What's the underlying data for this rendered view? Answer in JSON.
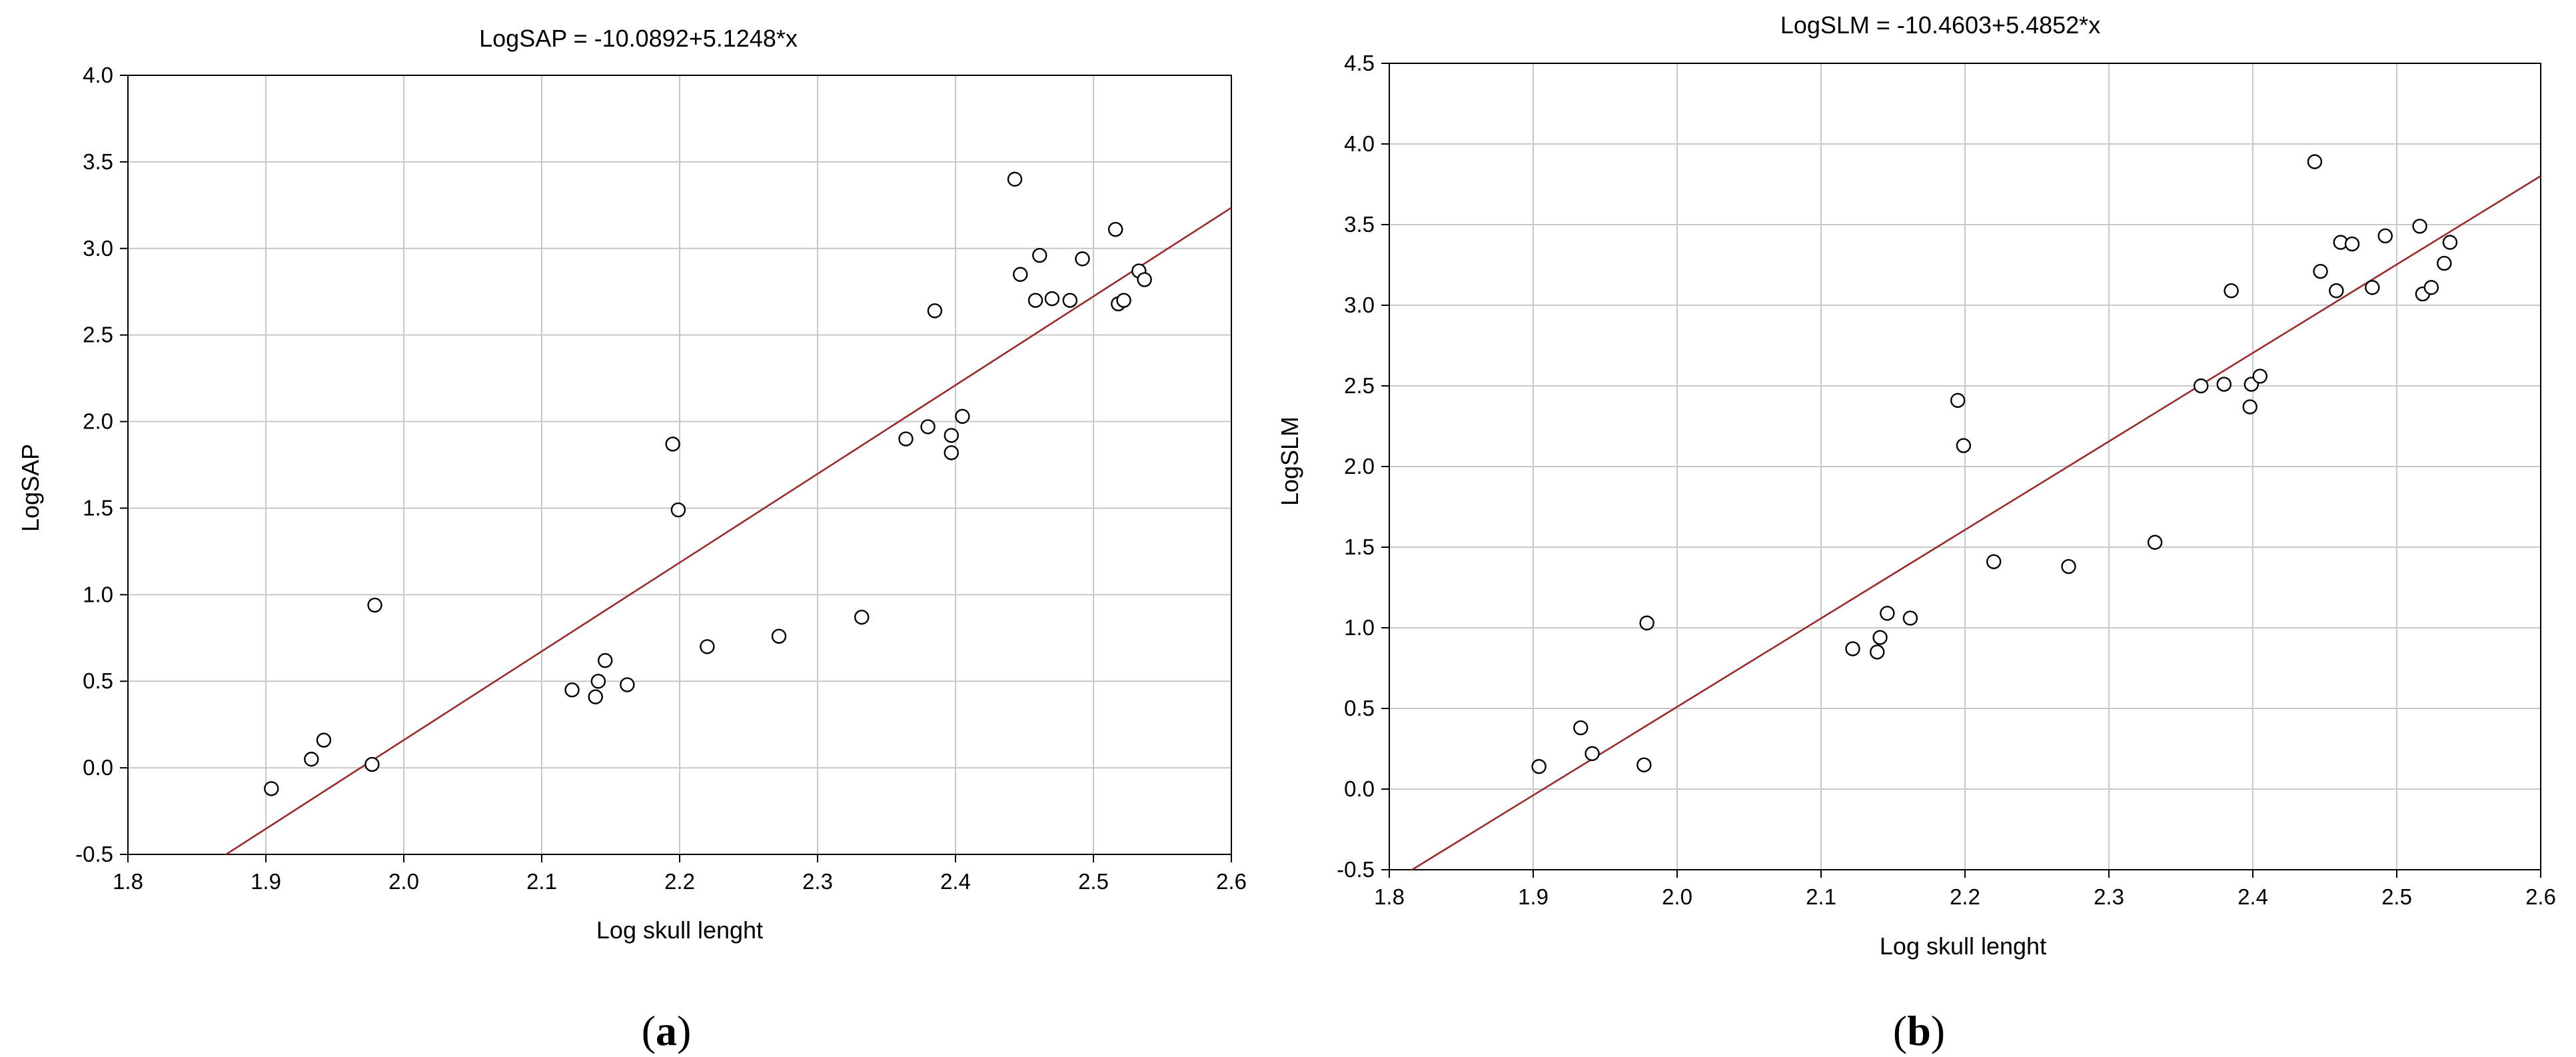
{
  "chart_data": [
    {
      "type": "scatter",
      "panel": "a",
      "title": "LogSAP = -10.0892+5.1248*x",
      "xlabel": "Log skull lenght",
      "ylabel": "LogSAP",
      "xlim": [
        1.8,
        2.6
      ],
      "ylim": [
        -0.5,
        4.0
      ],
      "xticks": [
        "1.8",
        "1.9",
        "2.0",
        "2.1",
        "2.2",
        "2.3",
        "2.4",
        "2.5",
        "2.6"
      ],
      "yticks": [
        "-0.5",
        "0.0",
        "0.5",
        "1.0",
        "1.5",
        "2.0",
        "2.5",
        "3.0",
        "3.5",
        "4.0"
      ],
      "grid": true,
      "fit_line": {
        "intercept": -10.0892,
        "slope": 5.1248
      },
      "colors": {
        "fit": "#9b2a2a",
        "grid": "#c8c8c8",
        "marker_edge": "#000000"
      },
      "points": [
        [
          1.904,
          -0.12
        ],
        [
          1.933,
          0.05
        ],
        [
          1.942,
          0.16
        ],
        [
          1.977,
          0.02
        ],
        [
          1.979,
          0.94
        ],
        [
          2.122,
          0.45
        ],
        [
          2.139,
          0.41
        ],
        [
          2.141,
          0.5
        ],
        [
          2.146,
          0.62
        ],
        [
          2.162,
          0.48
        ],
        [
          2.195,
          1.87
        ],
        [
          2.199,
          1.49
        ],
        [
          2.22,
          0.7
        ],
        [
          2.272,
          0.76
        ],
        [
          2.332,
          0.87
        ],
        [
          2.364,
          1.9
        ],
        [
          2.38,
          1.97
        ],
        [
          2.385,
          2.64
        ],
        [
          2.397,
          1.82
        ],
        [
          2.397,
          1.92
        ],
        [
          2.405,
          2.03
        ],
        [
          2.443,
          3.4
        ],
        [
          2.447,
          2.85
        ],
        [
          2.458,
          2.7
        ],
        [
          2.461,
          2.96
        ],
        [
          2.47,
          2.71
        ],
        [
          2.483,
          2.7
        ],
        [
          2.492,
          2.94
        ],
        [
          2.516,
          3.11
        ],
        [
          2.518,
          2.68
        ],
        [
          2.522,
          2.7
        ],
        [
          2.533,
          2.87
        ],
        [
          2.537,
          2.82
        ]
      ]
    },
    {
      "type": "scatter",
      "panel": "b",
      "title": "LogSLM = -10.4603+5.4852*x",
      "xlabel": "Log skull lenght",
      "ylabel": "LogSLM",
      "xlim": [
        1.8,
        2.6
      ],
      "ylim": [
        -0.5,
        4.5
      ],
      "xticks": [
        "1.8",
        "1.9",
        "2.0",
        "2.1",
        "2.2",
        "2.3",
        "2.4",
        "2.5",
        "2.6"
      ],
      "yticks": [
        "-0.5",
        "0.0",
        "0.5",
        "1.0",
        "1.5",
        "2.0",
        "2.5",
        "3.0",
        "3.5",
        "4.0",
        "4.5"
      ],
      "grid": true,
      "fit_line": {
        "intercept": -10.4603,
        "slope": 5.4852
      },
      "colors": {
        "fit": "#9b2a2a",
        "grid": "#c8c8c8",
        "marker_edge": "#000000"
      },
      "points": [
        [
          1.904,
          0.14
        ],
        [
          1.933,
          0.38
        ],
        [
          1.941,
          0.22
        ],
        [
          1.977,
          0.15
        ],
        [
          1.979,
          1.03
        ],
        [
          2.122,
          0.87
        ],
        [
          2.139,
          0.85
        ],
        [
          2.141,
          0.94
        ],
        [
          2.146,
          1.09
        ],
        [
          2.162,
          1.06
        ],
        [
          2.195,
          2.41
        ],
        [
          2.199,
          2.13
        ],
        [
          2.22,
          1.41
        ],
        [
          2.272,
          1.38
        ],
        [
          2.332,
          1.53
        ],
        [
          2.364,
          2.5
        ],
        [
          2.38,
          2.51
        ],
        [
          2.385,
          3.09
        ],
        [
          2.398,
          2.37
        ],
        [
          2.399,
          2.51
        ],
        [
          2.405,
          2.56
        ],
        [
          2.443,
          3.89
        ],
        [
          2.447,
          3.21
        ],
        [
          2.458,
          3.09
        ],
        [
          2.461,
          3.39
        ],
        [
          2.469,
          3.38
        ],
        [
          2.483,
          3.11
        ],
        [
          2.492,
          3.43
        ],
        [
          2.516,
          3.49
        ],
        [
          2.518,
          3.07
        ],
        [
          2.524,
          3.11
        ],
        [
          2.533,
          3.26
        ],
        [
          2.537,
          3.39
        ]
      ]
    }
  ],
  "labels": {
    "panel_a": {
      "open": "(",
      "letter": "a",
      "close": ")"
    },
    "panel_b": {
      "open": "(",
      "letter": "b",
      "close": ")"
    }
  }
}
